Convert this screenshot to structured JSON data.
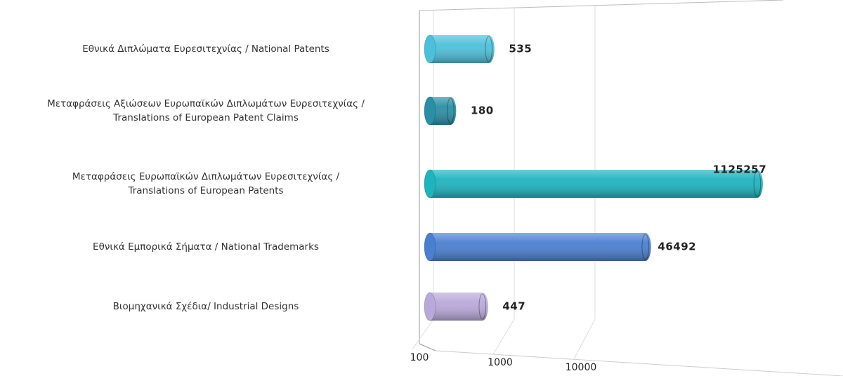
{
  "chart_data": {
    "type": "bar",
    "orientation": "horizontal",
    "categories": [
      "Εθνικά Διπλώματα Ευρεσιτεχνίας / National Patents",
      "Μεταφράσεις Αξιώσεων Ευρωπαϊκών Διπλωμάτων Ευρεσιτεχνίας /\nTranslations of European Patent Claims",
      "Μεταφράσεις Ευρωπαϊκών Διπλωμάτων Ευρεσιτεχνίας /\nTranslations of European Patents",
      "Εθνικά Εμπορικά Σήματα / National Trademarks",
      "Βιομηχανικά Σχέδια/ Industrial Designs"
    ],
    "values": [
      535,
      180,
      1125257,
      46492,
      447
    ],
    "colors": [
      "#4cc0da",
      "#2a8ea6",
      "#1db3bf",
      "#4a7fd0",
      "#b9a9da"
    ],
    "xscale": "log",
    "xlim": [
      100,
      10000000
    ],
    "xticks": [
      100,
      1000,
      10000
    ],
    "grid": true
  }
}
